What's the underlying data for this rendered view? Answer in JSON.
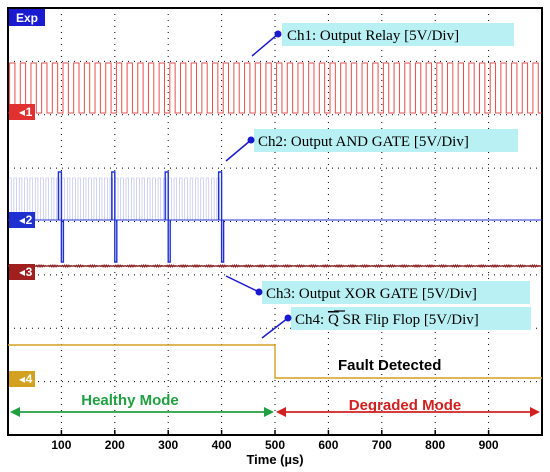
{
  "exp_label": "Exp",
  "colors": {
    "ch1": "#e03030",
    "ch2": "#2030d0",
    "ch3": "#8b2020",
    "ch4": "#d4a020",
    "callout_bg": "#b8f0f4",
    "healthy": "#20a040",
    "degraded": "#d02020",
    "grid": "#000000"
  },
  "chart_data": {
    "type": "line",
    "x_unit": "µs",
    "xlim": [
      0,
      1000
    ],
    "xlabel": "Time (µs)",
    "xticks": [
      100,
      200,
      300,
      400,
      500,
      600,
      700,
      800,
      900
    ],
    "grid": true,
    "channels": [
      {
        "id": "ch1",
        "marker": "1",
        "label": "Ch1: Output Relay [5V/Div]",
        "signal": "square wave, period ~20 µs, continuous 0–1000 µs"
      },
      {
        "id": "ch2",
        "marker": "2",
        "label": "Ch2: Output AND GATE [5V/Div]",
        "signal": "bursts 0–400 µs, pulses at 100, 200, 300, 400 µs, low after 400 µs"
      },
      {
        "id": "ch3",
        "marker": "3",
        "label": "Ch3: Output XOR GATE [5V/Div]",
        "signal": "constant low"
      },
      {
        "id": "ch4",
        "marker": "4",
        "label_prefix": "Ch4: ",
        "label_q": "Q",
        "label_suffix": " SR Flip Flop [5V/Div]",
        "signal": "high 0–500 µs, low after 500 µs"
      }
    ],
    "fault_at": 500,
    "annotations": {
      "fault": "Fault Detected",
      "healthy": "Healthy Mode",
      "degraded": "Degraded Mode"
    }
  }
}
